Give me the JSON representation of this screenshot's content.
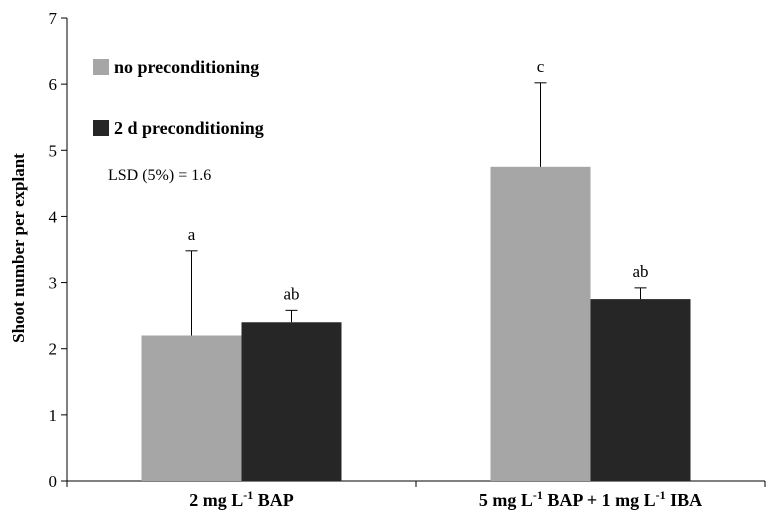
{
  "chart_data": {
    "type": "bar",
    "title": "",
    "ylabel": "Shoot number per explant",
    "xlabel": "",
    "ylim": [
      0,
      7
    ],
    "yticks": [
      "0",
      "1",
      "2",
      "3",
      "4",
      "5",
      "6",
      "7"
    ],
    "categories": [
      {
        "main": "2 mg L",
        "sup": "-1",
        "rest": " BAP"
      },
      {
        "main": "5 mg L",
        "sup": "-1",
        "rest": " BAP + 1 mg L",
        "sup2": "-1",
        "rest2": "  IBA"
      }
    ],
    "series": [
      {
        "name": "no preconditioning",
        "color": "#a6a6a6",
        "values": [
          2.2,
          4.75
        ],
        "error_upper": [
          1.28,
          1.27
        ],
        "sig_labels": [
          "a",
          "c"
        ]
      },
      {
        "name": "2 d preconditioning",
        "color": "#262626",
        "values": [
          2.4,
          2.75
        ],
        "error_upper": [
          0.18,
          0.17
        ],
        "sig_labels": [
          "ab",
          "ab"
        ]
      }
    ],
    "legend_position": "top-left",
    "annotation": "LSD (5%) = 1.6",
    "grid": false
  }
}
